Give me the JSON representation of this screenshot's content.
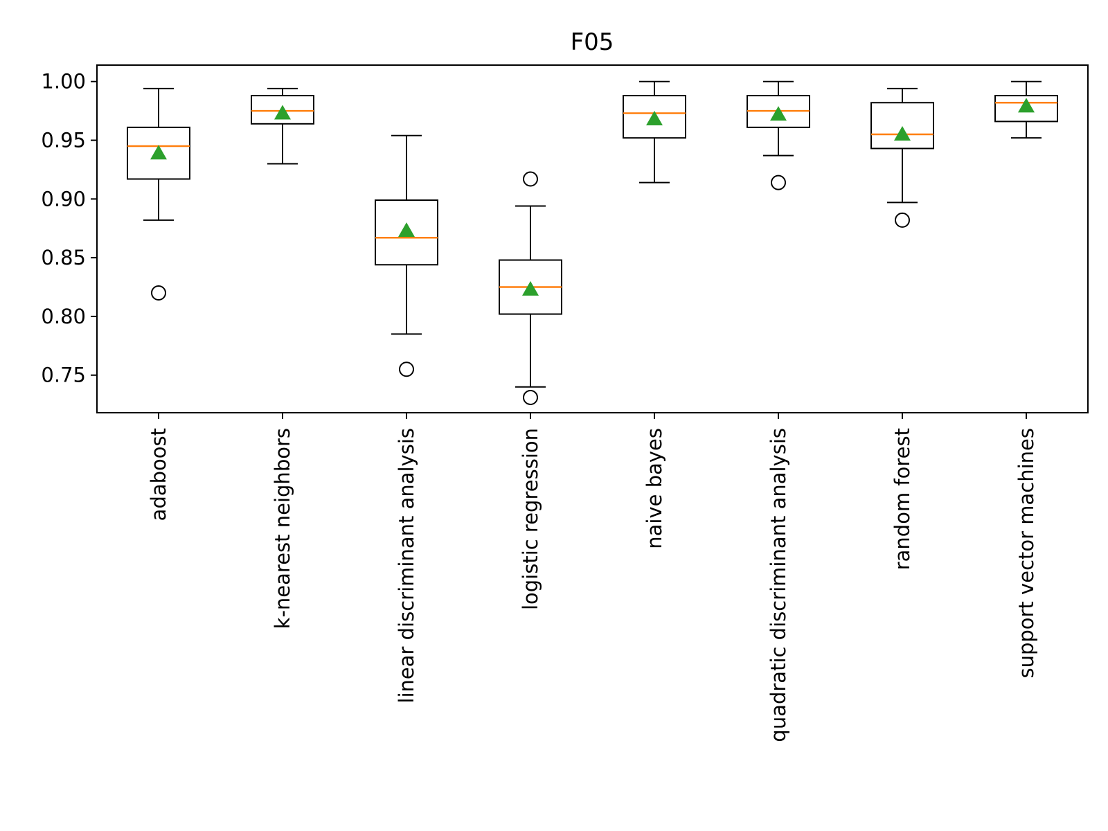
{
  "chart_data": {
    "type": "box",
    "title": "F05",
    "xlabel": "",
    "ylabel": "",
    "ylim": [
      0.718,
      1.014
    ],
    "yticks": [
      0.75,
      0.8,
      0.85,
      0.9,
      0.95,
      1.0
    ],
    "ytick_labels": [
      "0.75",
      "0.80",
      "0.85",
      "0.90",
      "0.95",
      "1.00"
    ],
    "grid": false,
    "legend": "none",
    "colors": {
      "box": "#000000",
      "median": "#ff7f0e",
      "mean": "#2ca02c",
      "flier": "#000000"
    },
    "categories": [
      "adaboost",
      "k-nearest neighbors",
      "linear discriminant analysis",
      "logistic regression",
      "naive bayes",
      "quadratic discriminant analysis",
      "random forest",
      "support vector machines"
    ],
    "boxes": [
      {
        "whislo": 0.882,
        "q1": 0.917,
        "med": 0.945,
        "q3": 0.961,
        "whishi": 0.994,
        "mean": 0.939,
        "fliers": [
          0.82
        ]
      },
      {
        "whislo": 0.93,
        "q1": 0.964,
        "med": 0.975,
        "q3": 0.988,
        "whishi": 0.994,
        "mean": 0.973,
        "fliers": []
      },
      {
        "whislo": 0.785,
        "q1": 0.844,
        "med": 0.867,
        "q3": 0.899,
        "whishi": 0.954,
        "mean": 0.873,
        "fliers": [
          0.755
        ]
      },
      {
        "whislo": 0.74,
        "q1": 0.802,
        "med": 0.825,
        "q3": 0.848,
        "whishi": 0.894,
        "mean": 0.823,
        "fliers": [
          0.917,
          0.731
        ]
      },
      {
        "whislo": 0.914,
        "q1": 0.952,
        "med": 0.973,
        "q3": 0.988,
        "whishi": 1.0,
        "mean": 0.968,
        "fliers": []
      },
      {
        "whislo": 0.937,
        "q1": 0.961,
        "med": 0.975,
        "q3": 0.988,
        "whishi": 1.0,
        "mean": 0.972,
        "fliers": [
          0.914
        ]
      },
      {
        "whislo": 0.897,
        "q1": 0.943,
        "med": 0.955,
        "q3": 0.982,
        "whishi": 0.994,
        "mean": 0.955,
        "fliers": [
          0.882
        ]
      },
      {
        "whislo": 0.952,
        "q1": 0.966,
        "med": 0.982,
        "q3": 0.988,
        "whishi": 1.0,
        "mean": 0.979,
        "fliers": []
      }
    ]
  }
}
